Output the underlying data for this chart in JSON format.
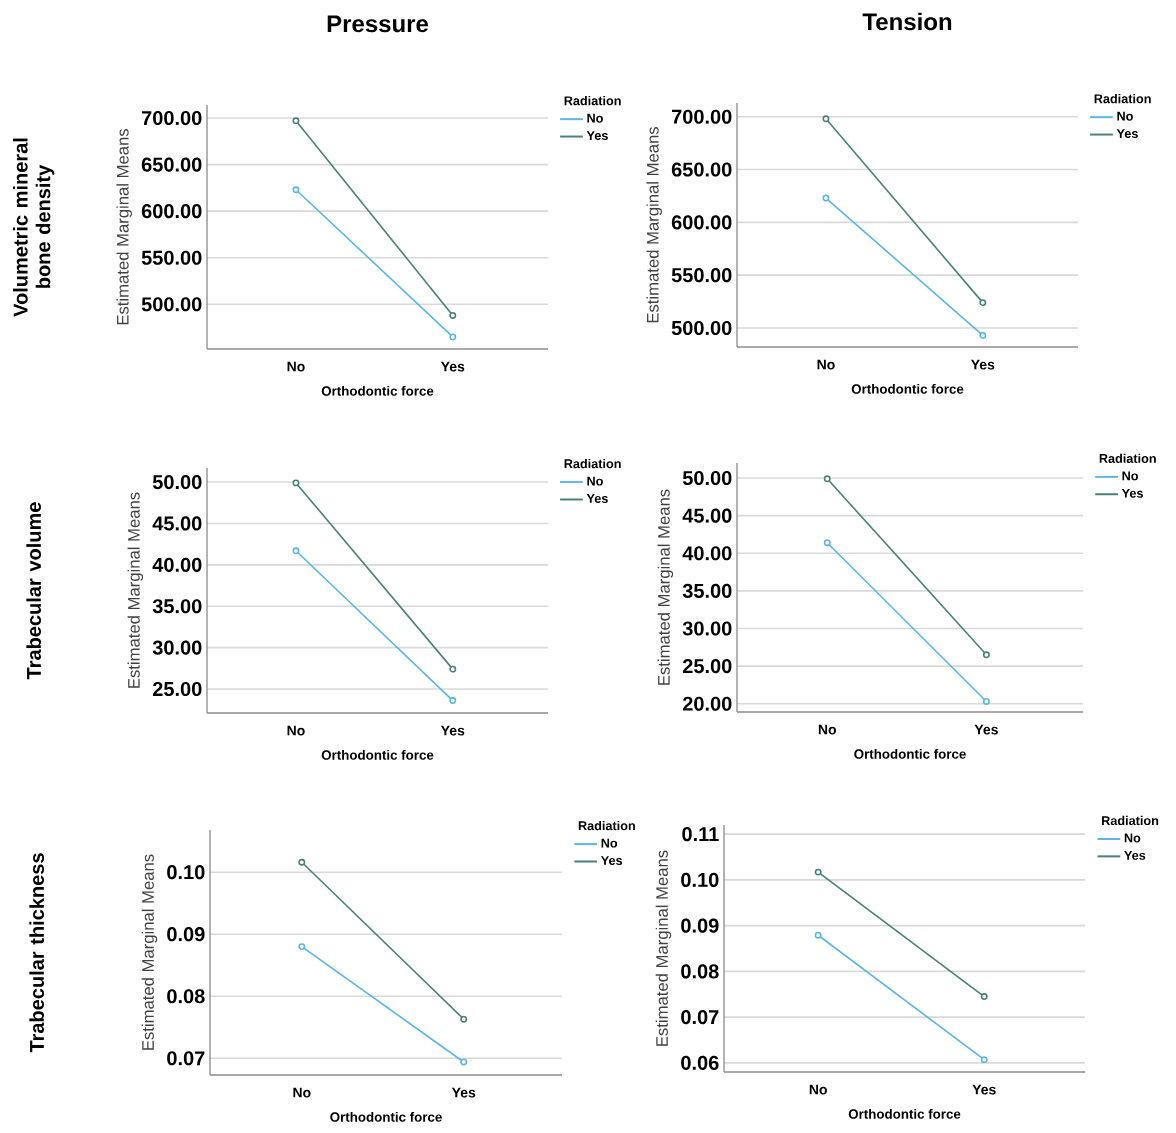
{
  "chart_data": [
    {
      "type": "line",
      "title": "Pressure",
      "annotations": [
        "Volumetric mineral bone density"
      ],
      "xlabel": "Orthodontic force",
      "ylabel": "Estimated Marginal Means",
      "legend_title": "Radiation",
      "categories": [
        "No",
        "Yes"
      ],
      "series": [
        {
          "name": "No",
          "color": "#5bb5e8",
          "values": [
            623,
            465
          ]
        },
        {
          "name": "Yes",
          "color": "#4a7f7a",
          "values": [
            697,
            488
          ]
        }
      ],
      "ylim": [
        452,
        714
      ],
      "yticks": [
        {
          "value": 500,
          "label": "500.00"
        },
        {
          "value": 550,
          "label": "550.00"
        },
        {
          "value": 600,
          "label": "600.00"
        },
        {
          "value": 650,
          "label": "650.00"
        },
        {
          "value": 700,
          "label": "700.00"
        }
      ],
      "grid": "y",
      "legend": "right",
      "marker": "circle"
    },
    {
      "type": "line",
      "title": "Tension",
      "xlabel": "Orthodontic force",
      "ylabel": "Estimated Marginal Means",
      "legend_title": "Radiation",
      "categories": [
        "No",
        "Yes"
      ],
      "series": [
        {
          "name": "No",
          "color": "#5bb5e8",
          "values": [
            623,
            493
          ]
        },
        {
          "name": "Yes",
          "color": "#4a7f7a",
          "values": [
            698,
            524
          ]
        }
      ],
      "ylim": [
        482,
        713
      ],
      "yticks": [
        {
          "value": 500,
          "label": "500.00"
        },
        {
          "value": 550,
          "label": "550.00"
        },
        {
          "value": 600,
          "label": "600.00"
        },
        {
          "value": 650,
          "label": "650.00"
        },
        {
          "value": 700,
          "label": "700.00"
        }
      ],
      "grid": "y",
      "legend": "right",
      "marker": "circle"
    },
    {
      "type": "line",
      "annotations": [
        "Trabecular volume"
      ],
      "xlabel": "Orthodontic force",
      "ylabel": "Estimated Marginal Means",
      "legend_title": "Radiation",
      "categories": [
        "No",
        "Yes"
      ],
      "series": [
        {
          "name": "No",
          "color": "#5bb5e8",
          "values": [
            41.7,
            23.6
          ]
        },
        {
          "name": "Yes",
          "color": "#4a7f7a",
          "values": [
            49.9,
            27.4
          ]
        }
      ],
      "ylim": [
        22.1,
        51.7
      ],
      "yticks": [
        {
          "value": 25,
          "label": "25.00"
        },
        {
          "value": 30,
          "label": "30.00"
        },
        {
          "value": 35,
          "label": "35.00"
        },
        {
          "value": 40,
          "label": "40.00"
        },
        {
          "value": 45,
          "label": "45.00"
        },
        {
          "value": 50,
          "label": "50.00"
        }
      ],
      "grid": "y",
      "legend": "right",
      "marker": "circle"
    },
    {
      "type": "line",
      "xlabel": "Orthodontic force",
      "ylabel": "Estimated Marginal Means",
      "legend_title": "Radiation",
      "categories": [
        "No",
        "Yes"
      ],
      "series": [
        {
          "name": "No",
          "color": "#5bb5e8",
          "values": [
            41.4,
            20.3
          ]
        },
        {
          "name": "Yes",
          "color": "#4a7f7a",
          "values": [
            49.9,
            26.5
          ]
        }
      ],
      "ylim": [
        18.9,
        52
      ],
      "yticks": [
        {
          "value": 20,
          "label": "20.00"
        },
        {
          "value": 25,
          "label": "25.00"
        },
        {
          "value": 30,
          "label": "30.00"
        },
        {
          "value": 35,
          "label": "35.00"
        },
        {
          "value": 40,
          "label": "40.00"
        },
        {
          "value": 45,
          "label": "45.00"
        },
        {
          "value": 50,
          "label": "50.00"
        }
      ],
      "grid": "y",
      "legend": "right",
      "marker": "circle"
    },
    {
      "type": "line",
      "annotations": [
        "Trabecular thickness"
      ],
      "xlabel": "Orthodontic force",
      "ylabel": "Estimated Marginal Means",
      "legend_title": "Radiation",
      "categories": [
        "No",
        "Yes"
      ],
      "series": [
        {
          "name": "No",
          "color": "#5bb5e8",
          "values": [
            0.088,
            0.0694
          ]
        },
        {
          "name": "Yes",
          "color": "#4a7f7a",
          "values": [
            0.1016,
            0.0763
          ]
        }
      ],
      "ylim": [
        0.0673,
        0.1068
      ],
      "yticks": [
        {
          "value": 0.07,
          "label": "0.07"
        },
        {
          "value": 0.08,
          "label": "0.08"
        },
        {
          "value": 0.09,
          "label": "0.09"
        },
        {
          "value": 0.1,
          "label": "0.10"
        }
      ],
      "grid": "y",
      "legend": "right",
      "marker": "circle"
    },
    {
      "type": "line",
      "xlabel": "Orthodontic force",
      "ylabel": "Estimated Marginal Means",
      "legend_title": "Radiation",
      "categories": [
        "No",
        "Yes"
      ],
      "series": [
        {
          "name": "No",
          "color": "#5bb5e8",
          "values": [
            0.0879,
            0.0607
          ]
        },
        {
          "name": "Yes",
          "color": "#4a7f7a",
          "values": [
            0.1017,
            0.0745
          ]
        }
      ],
      "ylim": [
        0.058,
        0.112
      ],
      "yticks": [
        {
          "value": 0.06,
          "label": "0.06"
        },
        {
          "value": 0.07,
          "label": "0.07"
        },
        {
          "value": 0.08,
          "label": "0.08"
        },
        {
          "value": 0.09,
          "label": "0.09"
        },
        {
          "value": 0.1,
          "label": "0.10"
        },
        {
          "value": 0.11,
          "label": "0.11"
        }
      ],
      "grid": "y",
      "legend": "right",
      "marker": "circle"
    }
  ]
}
